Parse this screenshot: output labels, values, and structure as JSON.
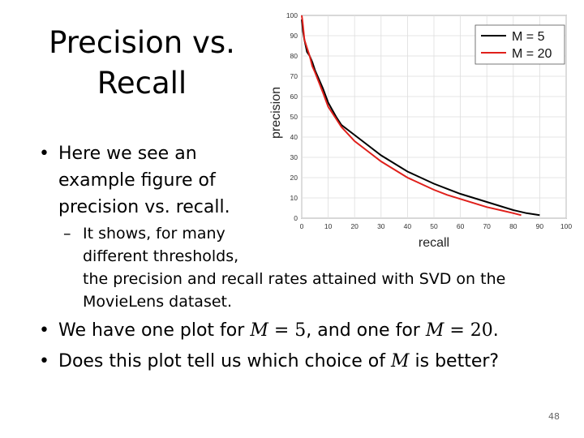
{
  "slide": {
    "title_line1": "Precision vs.",
    "title_line2": "Recall",
    "bullet1": "Here we see an example figure of precision vs. recall.",
    "sub_bullet": "It shows, for many different thresholds,",
    "sub_bullet_cont": "the precision and recall rates attained with SVD on the MovieLens dataset.",
    "bullet2_pre": "We have one plot for",
    "bullet2_m1_var": "M",
    "bullet2_m1_eq": "= 5",
    "bullet2_mid": ", and one for",
    "bullet2_m2_var": "M",
    "bullet2_m2_eq": "= 20",
    "bullet2_post": ".",
    "bullet3_pre": "Does this plot tell us which choice of",
    "bullet3_var": "M",
    "bullet3_post": "is better?",
    "page_number": "48",
    "bullet_symbol": "•",
    "dash_symbol": "–"
  },
  "chart_data": {
    "type": "line",
    "xlabel": "recall",
    "ylabel": "precision",
    "xlim": [
      0,
      100
    ],
    "ylim": [
      0,
      100
    ],
    "x_ticks": [
      0,
      10,
      20,
      30,
      40,
      50,
      60,
      70,
      80,
      90,
      100
    ],
    "y_ticks": [
      0,
      10,
      20,
      30,
      40,
      50,
      60,
      70,
      80,
      90,
      100
    ],
    "grid": true,
    "legend_position": "top-right",
    "series": [
      {
        "name": "M = 5",
        "color": "#000000",
        "x": [
          0,
          0.5,
          1,
          2,
          3,
          4,
          5,
          8,
          10,
          13,
          15,
          20,
          25,
          30,
          35,
          40,
          45,
          50,
          55,
          60,
          65,
          70,
          75,
          80,
          85,
          90
        ],
        "y": [
          98,
          92,
          88,
          82,
          80,
          77,
          73,
          64,
          57,
          50,
          46,
          41,
          36,
          31,
          27,
          23,
          20,
          17,
          14.5,
          12,
          10,
          8,
          6,
          4,
          2.5,
          1.5
        ]
      },
      {
        "name": "M = 20",
        "color": "#e0201b",
        "x": [
          0,
          0.3,
          0.7,
          1,
          2,
          3,
          4,
          5,
          8,
          10,
          13,
          15,
          20,
          25,
          30,
          35,
          40,
          45,
          50,
          55,
          60,
          65,
          70,
          75,
          80,
          83
        ],
        "y": [
          100,
          97,
          92,
          88,
          84,
          80,
          75,
          72,
          62,
          55,
          49,
          45,
          38,
          33,
          28,
          24,
          20,
          17,
          14,
          11.5,
          9.5,
          7.5,
          5.5,
          4,
          2.5,
          1.5
        ]
      }
    ]
  }
}
